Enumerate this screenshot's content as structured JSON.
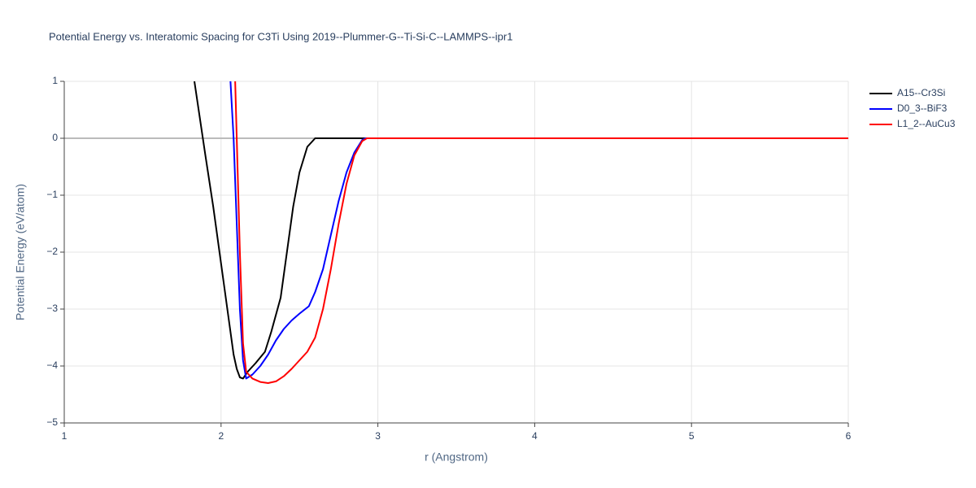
{
  "chart_data": {
    "type": "line",
    "title": "Potential Energy vs. Interatomic Spacing for C3Ti Using 2019--Plummer-G--Ti-Si-C--LAMMPS--ipr1",
    "x_label": "r (Angstrom)",
    "y_label": "Potential Energy (eV/atom)",
    "xlim": [
      1,
      6
    ],
    "xticks": [
      1,
      2,
      3,
      4,
      5,
      6
    ],
    "ylim": [
      -5,
      1
    ],
    "yticks": [
      {
        "value": -5,
        "label": "−5"
      },
      {
        "value": -4,
        "label": "−4"
      },
      {
        "value": -3,
        "label": "−3"
      },
      {
        "value": -2,
        "label": "−2"
      },
      {
        "value": -1,
        "label": "−1"
      },
      0,
      1
    ],
    "grid": true,
    "legend": "right",
    "series": [
      {
        "name": "A15--Cr3Si",
        "color": "#000000",
        "x": [
          1.83,
          1.9,
          1.95,
          2.0,
          2.05,
          2.08,
          2.1,
          2.12,
          2.14,
          2.17,
          2.22,
          2.28,
          2.32,
          2.38,
          2.42,
          2.46,
          2.5,
          2.55,
          2.6,
          2.65,
          3.0,
          6.0
        ],
        "values": [
          1.0,
          -0.3,
          -1.2,
          -2.2,
          -3.2,
          -3.8,
          -4.05,
          -4.2,
          -4.22,
          -4.1,
          -3.95,
          -3.75,
          -3.4,
          -2.8,
          -2.0,
          -1.2,
          -0.6,
          -0.15,
          0,
          0,
          0,
          0
        ]
      },
      {
        "name": "D0_3--BiF3",
        "color": "#0000ff",
        "x": [
          2.06,
          2.08,
          2.1,
          2.12,
          2.14,
          2.16,
          2.2,
          2.25,
          2.3,
          2.35,
          2.4,
          2.45,
          2.5,
          2.56,
          2.6,
          2.65,
          2.7,
          2.75,
          2.8,
          2.85,
          2.9,
          2.92,
          6.0
        ],
        "values": [
          1.0,
          0,
          -1.5,
          -3.0,
          -3.9,
          -4.22,
          -4.15,
          -4.0,
          -3.8,
          -3.55,
          -3.35,
          -3.2,
          -3.08,
          -2.95,
          -2.7,
          -2.3,
          -1.7,
          -1.1,
          -0.6,
          -0.25,
          -0.03,
          0,
          0
        ]
      },
      {
        "name": "L1_2--AuCu3",
        "color": "#ff0000",
        "x": [
          2.09,
          2.1,
          2.12,
          2.14,
          2.16,
          2.2,
          2.25,
          2.3,
          2.35,
          2.4,
          2.45,
          2.5,
          2.55,
          2.6,
          2.65,
          2.7,
          2.75,
          2.8,
          2.85,
          2.9,
          2.93,
          6.0
        ],
        "values": [
          1.0,
          0,
          -2.0,
          -3.6,
          -4.1,
          -4.22,
          -4.28,
          -4.3,
          -4.27,
          -4.18,
          -4.05,
          -3.9,
          -3.75,
          -3.5,
          -3.0,
          -2.3,
          -1.5,
          -0.8,
          -0.3,
          -0.05,
          0,
          0
        ]
      }
    ]
  }
}
